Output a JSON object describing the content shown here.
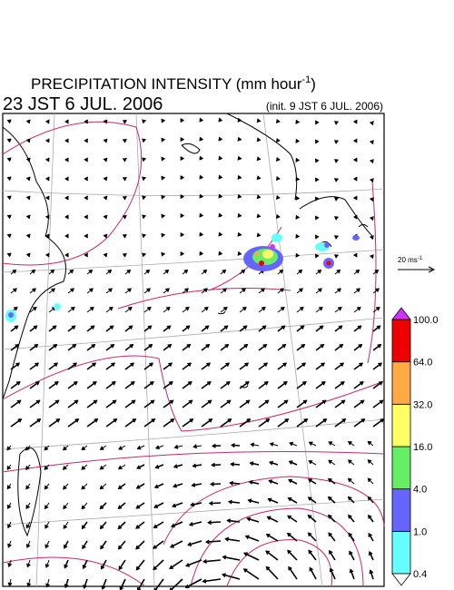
{
  "header": {
    "title": "PRECIPITATION INTENSITY (mm hour",
    "title_superscript": "-1",
    "title_close": ")",
    "valid_time": "23 JST 6 JUL. 2006",
    "init_time": "(init. 9 JST 6 JUL. 2006)"
  },
  "vector_scale": {
    "label": "20 ms",
    "superscript": "-1"
  },
  "colorbar": {
    "labels": [
      "0.4",
      "1.0",
      "4.0",
      "16.0",
      "32.0",
      "64.0",
      "100.0"
    ],
    "colors": [
      "#66ffff",
      "#6666ff",
      "#66ee66",
      "#ffff66",
      "#ffaa44",
      "#ee0000"
    ],
    "over_color": "#cc33ff",
    "under_color": "#ffffff"
  }
}
